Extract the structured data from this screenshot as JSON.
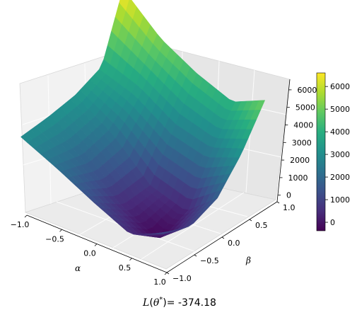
{
  "chart_data": {
    "type": "surface3d",
    "colormap": "viridis",
    "xlabel": "α",
    "ylabel": "β",
    "x_ticks": [
      "−1.0",
      "−0.5",
      "0.0",
      "0.5",
      "1.0"
    ],
    "y_ticks": [
      "−1.0",
      "−0.5",
      "0.0",
      "0.5",
      "1.0"
    ],
    "z_ticks": [
      "0",
      "1000",
      "2000",
      "3000",
      "4000",
      "5000",
      "6000"
    ],
    "colorbar_ticks": [
      "0",
      "1000",
      "2000",
      "3000",
      "4000",
      "5000",
      "6000"
    ],
    "xlim": [
      -1.0,
      1.0
    ],
    "ylim": [
      -1.0,
      1.0
    ],
    "zlim": [
      -374,
      6600
    ],
    "colorbar_range": [
      -374,
      6600
    ],
    "grid": true,
    "colorbar_position": "right",
    "minimum_value": -374.18,
    "surface": {
      "alpha": [
        -1.0,
        -0.5,
        0.0,
        0.5,
        1.0
      ],
      "beta": [
        -1.0,
        -0.5,
        0.0,
        0.5,
        1.0
      ],
      "z": [
        [
          3000,
          3100,
          3300,
          3800,
          6600
        ],
        [
          2200,
          1900,
          2300,
          3500,
          5200
        ],
        [
          1300,
          500,
          700,
          2600,
          4500
        ],
        [
          500,
          -374,
          300,
          2400,
          4100
        ],
        [
          1200,
          1000,
          1700,
          3200,
          5100
        ]
      ]
    }
  },
  "caption": {
    "prefix": "L",
    "theta": "θ",
    "star": "*",
    "value_text": "= -374.18"
  }
}
